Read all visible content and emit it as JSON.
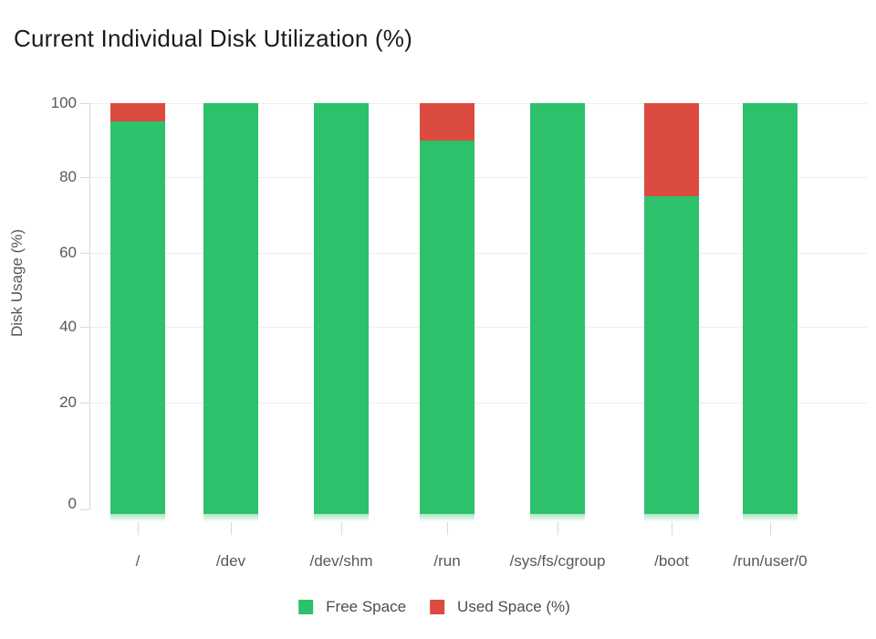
{
  "title": "Current Individual Disk Utilization (%)",
  "chart_data": {
    "type": "bar",
    "stacked": true,
    "title": "Current Individual Disk Utilization (%)",
    "categories": [
      "/",
      "/dev",
      "/dev/shm",
      "/run",
      "/sys/fs/cgroup",
      "/boot",
      "/run/user/0"
    ],
    "series": [
      {
        "name": "Free Space",
        "color": "#2dc16b",
        "values": [
          95,
          100,
          100,
          90,
          100,
          75,
          100
        ]
      },
      {
        "name": "Used Space (%)",
        "color": "#db4b3f",
        "values": [
          5,
          0,
          0,
          10,
          0,
          25,
          0
        ]
      }
    ],
    "xlabel": "",
    "ylabel": "Disk Usage (%)",
    "yticks": [
      0,
      20,
      40,
      60,
      80,
      100
    ],
    "ylim": [
      0,
      100
    ],
    "grid": true,
    "legend_position": "bottom"
  },
  "colors": {
    "free_space": "#2dc16b",
    "used_space": "#db4b3f",
    "gridline": "#ededed",
    "axis": "#d9d9d9",
    "tick_text": "#58585a",
    "legend_text": "#4d4d4f",
    "title_text": "#1b1b1b"
  }
}
